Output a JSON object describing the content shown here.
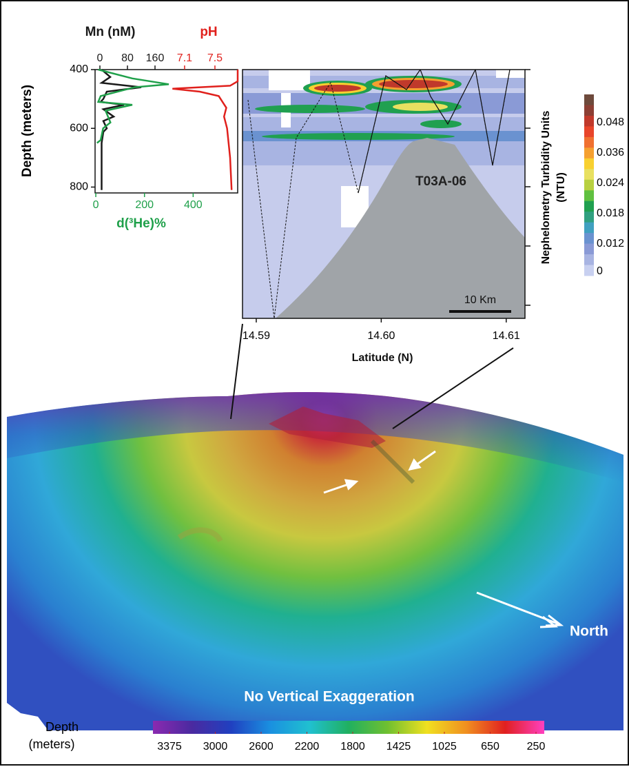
{
  "profiles": {
    "type": "line",
    "ylabel": "Depth (meters)",
    "ylim": [
      400,
      820
    ],
    "yticks": [
      400,
      600,
      800
    ],
    "series": [
      {
        "name": "Mn (nM)",
        "color": "#1a1a1a",
        "axis": "top",
        "xlim": [
          -14,
          400
        ],
        "xticks": [
          0,
          80,
          160
        ],
        "depth": [
          400,
          425,
          445,
          460,
          475,
          500,
          510,
          520,
          535,
          560,
          575,
          600,
          612,
          650,
          810
        ],
        "values": [
          5,
          30,
          5,
          120,
          20,
          10,
          2,
          70,
          10,
          40,
          10,
          20,
          10,
          5,
          5
        ]
      },
      {
        "name": "pH",
        "color": "#e0201c",
        "axis": "top",
        "xlim": [
          5.92,
          7.8
        ],
        "xticks": [
          7.1,
          7.5
        ],
        "depth": [
          400,
          440,
          455,
          465,
          475,
          490,
          510,
          530,
          560,
          600,
          650,
          700,
          810
        ],
        "values": [
          7.8,
          7.8,
          7.7,
          6.94,
          7.3,
          7.55,
          7.6,
          7.65,
          7.62,
          7.66,
          7.68,
          7.7,
          7.72
        ]
      },
      {
        "name": "d(³He)%",
        "color": "#1fa04a",
        "axis": "bottom",
        "xlim": [
          -3,
          583
        ],
        "xticks": [
          0,
          200,
          400
        ],
        "depth": [
          400,
          430,
          450,
          460,
          490,
          510,
          520,
          540,
          580,
          600,
          640,
          650
        ],
        "values": [
          10,
          150,
          300,
          160,
          20,
          10,
          150,
          40,
          60,
          30,
          20,
          5
        ]
      }
    ]
  },
  "section": {
    "xlabel": "Latitude (N)",
    "xlim": [
      14.5889,
      14.6115
    ],
    "xticks": [
      14.59,
      {
        "value": 14.6,
        "label": "14.60"
      },
      14.61
    ],
    "label": "T03A-06",
    "scale_bar": "10 Km",
    "colorbar": {
      "label": [
        "Nephelometry Turbidity Units",
        "(NTU)"
      ],
      "colors": [
        "#6e4a3c",
        "#8c3f34",
        "#c0392b",
        "#e8452a",
        "#f07030",
        "#f5a030",
        "#f8d030",
        "#e8e060",
        "#b8d040",
        "#60c040",
        "#20a050",
        "#30a080",
        "#40a0c0",
        "#6a92d0",
        "#8a9ad6",
        "#a8b4e2",
        "#c8d0f0"
      ],
      "ticks": [
        0.048,
        0.036,
        0.024,
        0.018,
        0.012,
        0
      ]
    }
  },
  "map": {
    "caption": "No Vertical Exaggeration",
    "north": "North",
    "depth_bar": {
      "label": [
        "Depth",
        "(meters)"
      ],
      "colors": [
        "#8a2ab0",
        "#4a2aa0",
        "#2040c0",
        "#1a90e0",
        "#20c0d0",
        "#20b060",
        "#70c030",
        "#f0e020",
        "#f09020",
        "#e02020",
        "#ff40c0"
      ],
      "ticks": [
        3375,
        3000,
        2600,
        2200,
        1800,
        1425,
        1025,
        650,
        250
      ]
    }
  }
}
